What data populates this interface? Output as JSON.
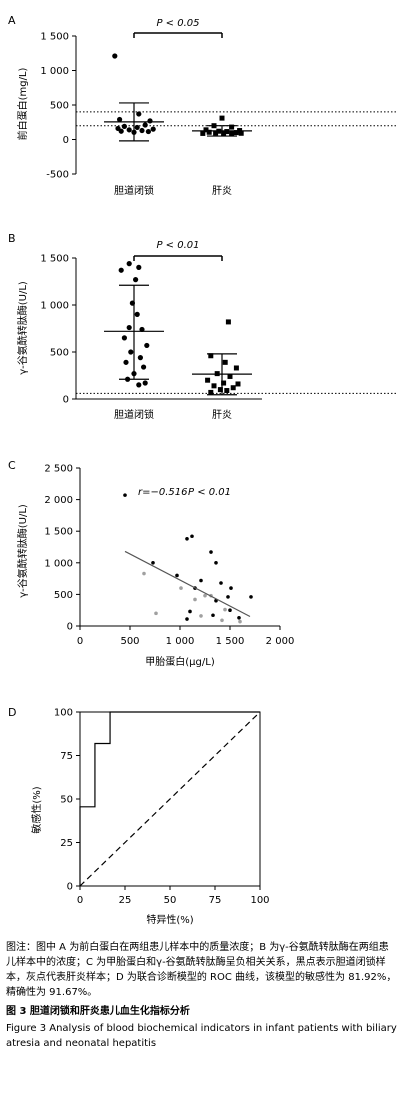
{
  "chart_data": [
    {
      "panel": "A",
      "type": "scatter",
      "ylabel": "前白蛋白(mg/L)",
      "categories": [
        "胆道闭锁",
        "肝炎"
      ],
      "ylim": [
        -500,
        1500
      ],
      "yticks": [
        -500,
        0,
        500,
        1000,
        1500
      ],
      "ytick_labels": [
        "-500",
        "0",
        "500",
        "1 000",
        "1 500"
      ],
      "reference_lines": [
        200,
        400
      ],
      "significance": "P < 0.05",
      "series": [
        {
          "category": "胆道闭锁",
          "marker": "circle",
          "mean": 255,
          "sd_low": -20,
          "sd_high": 530,
          "points": [
            [
              -1.2,
              1210
            ],
            [
              0.3,
              370
            ],
            [
              -0.9,
              290
            ],
            [
              1.0,
              270
            ],
            [
              0.7,
              210
            ],
            [
              -0.6,
              190
            ],
            [
              0.2,
              175
            ],
            [
              -1.0,
              160
            ],
            [
              1.2,
              150
            ],
            [
              -0.3,
              140
            ],
            [
              0.5,
              130
            ],
            [
              -0.8,
              120
            ],
            [
              0.9,
              115
            ],
            [
              0,
              105
            ]
          ]
        },
        {
          "category": "肝炎",
          "marker": "square",
          "mean": 125,
          "sd_low": 50,
          "sd_high": 200,
          "points": [
            [
              0,
              310
            ],
            [
              -0.5,
              200
            ],
            [
              0.6,
              180
            ],
            [
              -1.0,
              140
            ],
            [
              1.1,
              130
            ],
            [
              -0.2,
              120
            ],
            [
              0.3,
              115
            ],
            [
              -0.8,
              105
            ],
            [
              0.9,
              100
            ],
            [
              -0.4,
              95
            ],
            [
              1.2,
              90
            ],
            [
              -1.2,
              88
            ],
            [
              0.1,
              85
            ],
            [
              0.6,
              80
            ]
          ]
        }
      ]
    },
    {
      "panel": "B",
      "type": "scatter",
      "ylabel": "γ-谷氨酰转肽酶(U/L)",
      "categories": [
        "胆道闭锁",
        "肝炎"
      ],
      "ylim": [
        0,
        1500
      ],
      "yticks": [
        0,
        500,
        1000,
        1500
      ],
      "ytick_labels": [
        "0",
        "500",
        "1 000",
        "1 500"
      ],
      "reference_lines": [
        60
      ],
      "significance": "P < 0.01",
      "series": [
        {
          "category": "胆道闭锁",
          "marker": "circle",
          "mean": 720,
          "sd_low": 210,
          "sd_high": 1210,
          "points": [
            [
              -0.3,
              1440
            ],
            [
              0.3,
              1400
            ],
            [
              -0.8,
              1370
            ],
            [
              0.1,
              1270
            ],
            [
              -0.1,
              1020
            ],
            [
              0.2,
              900
            ],
            [
              -0.3,
              760
            ],
            [
              0.5,
              740
            ],
            [
              -0.6,
              650
            ],
            [
              0.8,
              570
            ],
            [
              -0.2,
              500
            ],
            [
              0.4,
              440
            ],
            [
              -0.5,
              390
            ],
            [
              0.6,
              340
            ],
            [
              0,
              270
            ],
            [
              -0.4,
              210
            ],
            [
              0.7,
              170
            ],
            [
              0.3,
              150
            ]
          ]
        },
        {
          "category": "肝炎",
          "marker": "square",
          "mean": 265,
          "sd_low": 45,
          "sd_high": 480,
          "points": [
            [
              0.4,
              820
            ],
            [
              -0.7,
              460
            ],
            [
              0.2,
              390
            ],
            [
              0.9,
              330
            ],
            [
              -0.3,
              270
            ],
            [
              0.5,
              240
            ],
            [
              -0.9,
              200
            ],
            [
              0.1,
              170
            ],
            [
              1.0,
              160
            ],
            [
              -0.5,
              140
            ],
            [
              0.7,
              120
            ],
            [
              -0.1,
              100
            ],
            [
              0.3,
              90
            ],
            [
              -0.7,
              70
            ]
          ]
        }
      ]
    },
    {
      "panel": "C",
      "type": "scatter",
      "xlabel": "甲胎蛋白(μg/L)",
      "ylabel": "γ-谷氨酰转肽酶(U/L)",
      "xlim": [
        0,
        2000
      ],
      "ylim": [
        0,
        2500
      ],
      "xticks": [
        0,
        500,
        1000,
        1500,
        2000
      ],
      "xtick_labels": [
        "0",
        "500",
        "1 000",
        "1 500",
        "2 000"
      ],
      "yticks": [
        0,
        500,
        1000,
        1500,
        2000,
        2500
      ],
      "ytick_labels": [
        "0",
        "500",
        "1 000",
        "1 500",
        "2 000",
        "2 500"
      ],
      "annotation": [
        "r=−0.516",
        "P < 0.01"
      ],
      "regression": [
        [
          450,
          1180
        ],
        [
          1700,
          150
        ]
      ],
      "series": [
        {
          "category": "胆道闭锁",
          "color": "#000000",
          "points": [
            [
              450,
              2070
            ],
            [
              1120,
              1420
            ],
            [
              1070,
              1380
            ],
            [
              1310,
              1170
            ],
            [
              1360,
              1000
            ],
            [
              730,
              1000
            ],
            [
              1210,
              720
            ],
            [
              970,
              800
            ],
            [
              1410,
              680
            ],
            [
              1510,
              600
            ],
            [
              1150,
              600
            ],
            [
              1480,
              460
            ],
            [
              1360,
              400
            ],
            [
              1710,
              460
            ],
            [
              1500,
              250
            ],
            [
              1100,
              230
            ],
            [
              1330,
              170
            ],
            [
              1590,
              130
            ],
            [
              1070,
              110
            ]
          ]
        },
        {
          "category": "肝炎",
          "color": "#a0a0a0",
          "points": [
            [
              640,
              830
            ],
            [
              1010,
              600
            ],
            [
              1310,
              480
            ],
            [
              1250,
              480
            ],
            [
              1150,
              420
            ],
            [
              1450,
              260
            ],
            [
              760,
              200
            ],
            [
              1210,
              160
            ],
            [
              1420,
              90
            ],
            [
              1600,
              70
            ]
          ]
        }
      ]
    },
    {
      "panel": "D",
      "type": "line",
      "xlabel": "特异性(%)",
      "ylabel": "敏感性(%)",
      "xlim": [
        0,
        100
      ],
      "ylim": [
        0,
        100
      ],
      "xticks": [
        0,
        25,
        50,
        75,
        100
      ],
      "yticks": [
        0,
        25,
        50,
        75,
        100
      ],
      "series": [
        {
          "name": "ROC",
          "style": "solid",
          "points": [
            [
              0,
              0
            ],
            [
              0,
              45.5
            ],
            [
              8.3,
              45.5
            ],
            [
              8.3,
              81.9
            ],
            [
              16.7,
              81.9
            ],
            [
              16.7,
              100
            ],
            [
              100,
              100
            ]
          ]
        },
        {
          "name": "reference",
          "style": "dashed",
          "points": [
            [
              0,
              0
            ],
            [
              100,
              100
            ]
          ]
        }
      ]
    }
  ],
  "caption": {
    "note": "图注：图中 A 为前白蛋白在两组患儿样本中的质量浓度；B 为γ-谷氨酰转肽酶在两组患儿样本中的浓度；C 为甲胎蛋白和γ-谷氨酰转肽酶呈负相关关系，黑点表示胆道闭锁样本，灰点代表肝炎样本；D 为联合诊断模型的 ROC 曲线，该模型的敏感性为 81.92%，精确性为 91.67%。",
    "title_zh": "图 3    胆道闭锁和肝炎患儿血生化指标分析",
    "title_en": "Figure 3    Analysis of blood biochemical indicators in infant patients with biliary atresia and neonatal hepatitis"
  }
}
